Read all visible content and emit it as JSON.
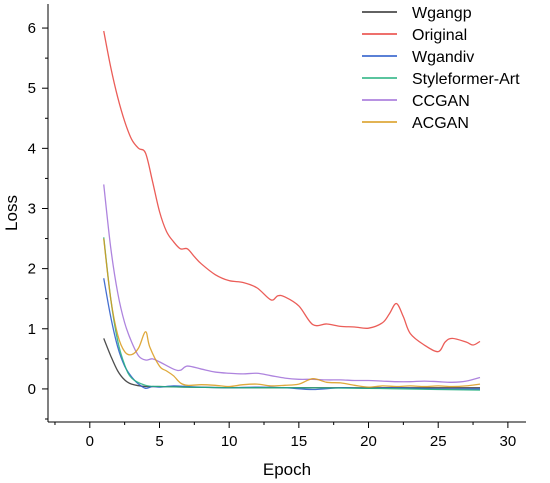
{
  "chart_data": {
    "type": "line",
    "title": "",
    "xlabel": "Epoch",
    "ylabel": "Loss",
    "xlim": [
      -3,
      31.3
    ],
    "ylim": [
      -0.55,
      6.4
    ],
    "xticks": [
      0,
      5,
      10,
      15,
      20,
      25,
      30
    ],
    "yticks": [
      0,
      1,
      2,
      3,
      4,
      5,
      6
    ],
    "grid": false,
    "legend_position": "top-right",
    "series": [
      {
        "name": "Wgangp",
        "color": "#2f2f2f",
        "points": [
          [
            1,
            0.84
          ],
          [
            1.5,
            0.55
          ],
          [
            2,
            0.3
          ],
          [
            2.5,
            0.15
          ],
          [
            3,
            0.08
          ],
          [
            4,
            0.04
          ],
          [
            5,
            0.04
          ],
          [
            7,
            0.03
          ],
          [
            10,
            0.02
          ],
          [
            15,
            0.02
          ],
          [
            20,
            0.02
          ],
          [
            25,
            0.02
          ],
          [
            28,
            0.02
          ]
        ]
      },
      {
        "name": "Original",
        "color": "#e8413b",
        "points": [
          [
            1,
            5.95
          ],
          [
            1.5,
            5.35
          ],
          [
            2,
            4.85
          ],
          [
            2.5,
            4.45
          ],
          [
            3,
            4.15
          ],
          [
            3.5,
            4.0
          ],
          [
            4,
            3.92
          ],
          [
            4.5,
            3.45
          ],
          [
            5,
            2.95
          ],
          [
            5.5,
            2.62
          ],
          [
            6,
            2.45
          ],
          [
            6.5,
            2.33
          ],
          [
            7,
            2.33
          ],
          [
            7.5,
            2.2
          ],
          [
            8,
            2.08
          ],
          [
            9,
            1.9
          ],
          [
            10,
            1.8
          ],
          [
            11,
            1.77
          ],
          [
            12,
            1.68
          ],
          [
            13,
            1.48
          ],
          [
            13.5,
            1.55
          ],
          [
            14,
            1.53
          ],
          [
            15,
            1.38
          ],
          [
            16,
            1.07
          ],
          [
            17,
            1.08
          ],
          [
            18,
            1.04
          ],
          [
            19,
            1.03
          ],
          [
            20,
            1.01
          ],
          [
            21,
            1.1
          ],
          [
            21.5,
            1.25
          ],
          [
            22,
            1.42
          ],
          [
            22.5,
            1.2
          ],
          [
            23,
            0.92
          ],
          [
            24,
            0.73
          ],
          [
            25,
            0.62
          ],
          [
            25.5,
            0.78
          ],
          [
            26,
            0.84
          ],
          [
            27,
            0.78
          ],
          [
            27.5,
            0.73
          ],
          [
            28,
            0.79
          ]
        ]
      },
      {
        "name": "Wgandiv",
        "color": "#2456c8",
        "points": [
          [
            1,
            1.84
          ],
          [
            1.5,
            1.2
          ],
          [
            2,
            0.7
          ],
          [
            2.5,
            0.38
          ],
          [
            3,
            0.2
          ],
          [
            3.5,
            0.08
          ],
          [
            4,
            0.01
          ],
          [
            4.5,
            0.04
          ],
          [
            5,
            0.03
          ],
          [
            6,
            0.05
          ],
          [
            7,
            0.04
          ],
          [
            8,
            0.03
          ],
          [
            10,
            0.02
          ],
          [
            12,
            0.03
          ],
          [
            14,
            0.02
          ],
          [
            16,
            -0.01
          ],
          [
            18,
            0.02
          ],
          [
            20,
            0.01
          ],
          [
            22,
            0.02
          ],
          [
            25,
            0.0
          ],
          [
            28,
            0.0
          ]
        ]
      },
      {
        "name": "Styleformer-Art",
        "color": "#23b07e",
        "points": [
          [
            1,
            2.52
          ],
          [
            1.5,
            1.5
          ],
          [
            2,
            0.8
          ],
          [
            2.5,
            0.4
          ],
          [
            3,
            0.18
          ],
          [
            4,
            0.06
          ],
          [
            5,
            0.04
          ],
          [
            7,
            0.03
          ],
          [
            10,
            0.02
          ],
          [
            15,
            0.02
          ],
          [
            20,
            0.01
          ],
          [
            25,
            -0.01
          ],
          [
            28,
            -0.02
          ]
        ]
      },
      {
        "name": "CCGAN",
        "color": "#a06ed8",
        "points": [
          [
            1,
            3.4
          ],
          [
            1.5,
            2.35
          ],
          [
            2,
            1.6
          ],
          [
            2.5,
            1.1
          ],
          [
            3,
            0.78
          ],
          [
            3.5,
            0.55
          ],
          [
            4,
            0.48
          ],
          [
            4.5,
            0.5
          ],
          [
            5,
            0.45
          ],
          [
            6,
            0.33
          ],
          [
            6.5,
            0.31
          ],
          [
            7,
            0.38
          ],
          [
            8,
            0.33
          ],
          [
            9,
            0.28
          ],
          [
            10,
            0.26
          ],
          [
            11,
            0.25
          ],
          [
            12,
            0.26
          ],
          [
            13,
            0.22
          ],
          [
            14,
            0.18
          ],
          [
            15,
            0.16
          ],
          [
            16,
            0.16
          ],
          [
            17,
            0.15
          ],
          [
            18,
            0.15
          ],
          [
            19,
            0.14
          ],
          [
            20,
            0.14
          ],
          [
            21,
            0.13
          ],
          [
            22,
            0.12
          ],
          [
            23,
            0.12
          ],
          [
            24,
            0.13
          ],
          [
            25,
            0.12
          ],
          [
            26,
            0.11
          ],
          [
            27,
            0.13
          ],
          [
            28,
            0.19
          ]
        ]
      },
      {
        "name": "ACGAN",
        "color": "#d99a1a",
        "points": [
          [
            1,
            2.5
          ],
          [
            1.5,
            1.5
          ],
          [
            2,
            0.9
          ],
          [
            2.5,
            0.62
          ],
          [
            3,
            0.57
          ],
          [
            3.5,
            0.68
          ],
          [
            4,
            0.95
          ],
          [
            4.3,
            0.7
          ],
          [
            5,
            0.38
          ],
          [
            5.5,
            0.3
          ],
          [
            6,
            0.22
          ],
          [
            6.5,
            0.1
          ],
          [
            7,
            0.06
          ],
          [
            8,
            0.07
          ],
          [
            9,
            0.06
          ],
          [
            10,
            0.04
          ],
          [
            11,
            0.07
          ],
          [
            12,
            0.08
          ],
          [
            13,
            0.05
          ],
          [
            14,
            0.06
          ],
          [
            15,
            0.08
          ],
          [
            16,
            0.17
          ],
          [
            17,
            0.11
          ],
          [
            18,
            0.1
          ],
          [
            19,
            0.06
          ],
          [
            20,
            0.03
          ],
          [
            21,
            0.05
          ],
          [
            22,
            0.04
          ],
          [
            23,
            0.05
          ],
          [
            24,
            0.04
          ],
          [
            25,
            0.05
          ],
          [
            26,
            0.04
          ],
          [
            27,
            0.05
          ],
          [
            28,
            0.08
          ]
        ]
      }
    ]
  }
}
